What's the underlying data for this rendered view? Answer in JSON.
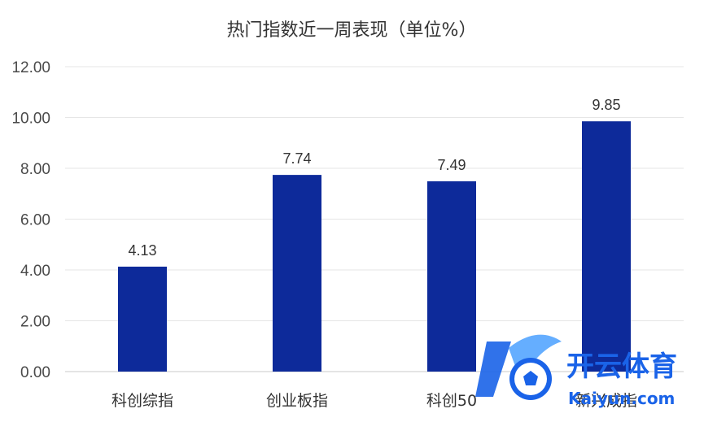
{
  "chart_data": {
    "type": "bar",
    "title": "热门指数近一周表现（单位%）",
    "categories": [
      "科创综指",
      "创业板指",
      "科创50",
      "新兴成指"
    ],
    "values": [
      4.13,
      7.74,
      7.49,
      9.85
    ],
    "data_labels": [
      "4.13",
      "7.74",
      "7.49",
      "9.85"
    ],
    "ylim": [
      0,
      12
    ],
    "yticks": [
      "0.00",
      "2.00",
      "4.00",
      "6.00",
      "8.00",
      "10.00",
      "12.00"
    ],
    "bar_color": "#0d2a9a",
    "grid": true,
    "legend": "none"
  },
  "watermark": {
    "brand": "开云体育",
    "domain": "Kaiyun.com",
    "color": "#1a63e8"
  }
}
